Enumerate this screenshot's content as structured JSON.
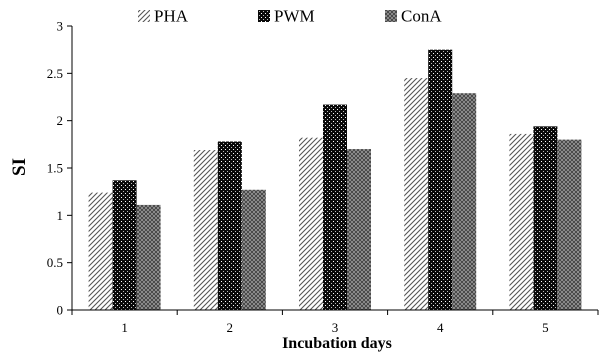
{
  "chart_data": {
    "type": "bar",
    "title": "",
    "xlabel": "Incubation  days",
    "ylabel": "SI",
    "categories": [
      "1",
      "2",
      "3",
      "4",
      "5"
    ],
    "ylim": [
      0,
      3
    ],
    "yticks": [
      "0",
      "0.5",
      "1",
      "1.5",
      "2",
      "2.5",
      "3"
    ],
    "grid": false,
    "legend_position": "top",
    "series": [
      {
        "name": "PHA",
        "pattern": "diagonal-hatch",
        "values": [
          1.24,
          1.69,
          1.82,
          2.45,
          1.86
        ]
      },
      {
        "name": "PWM",
        "pattern": "black-dotted",
        "values": [
          1.37,
          1.78,
          2.17,
          2.75,
          1.94
        ]
      },
      {
        "name": "ConA",
        "pattern": "gray-crosshatch",
        "values": [
          1.11,
          1.27,
          1.7,
          2.29,
          1.8
        ]
      }
    ]
  }
}
